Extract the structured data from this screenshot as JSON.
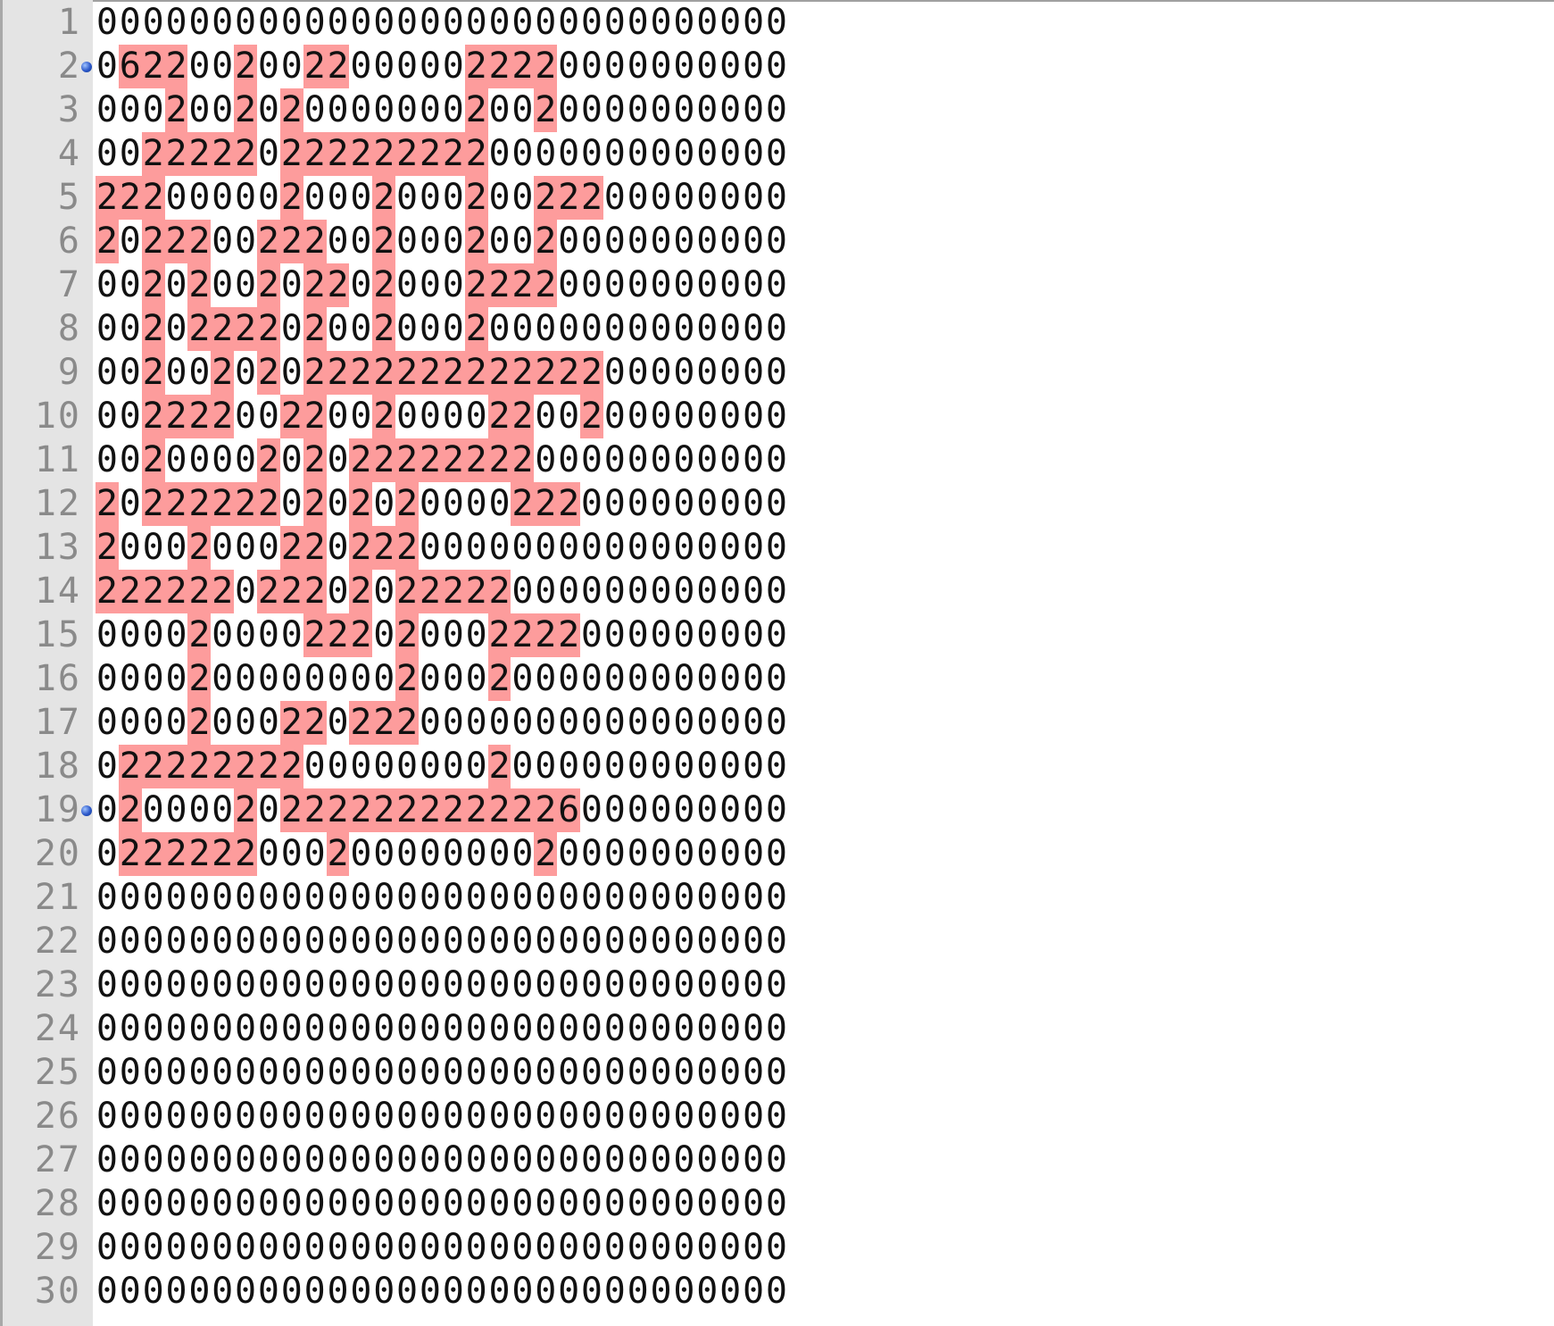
{
  "editor": {
    "lines": [
      "000000000000000000000000000000",
      "062200200220000022220000000000",
      "000200202000000020020000000000",
      "002222202222222220000000000000",
      "222000002000200020022200000000",
      "202220022200200020020000000000",
      "002020020220200022220000000000",
      "002022220200200020000000000000",
      "002002020222222222222200000000",
      "002222002200200002200200000000",
      "002000020202222222200000000000",
      "202222220202020000222000000000",
      "200020002202220000000000000000",
      "222222022202022222000000000000",
      "000020000222020002222000000000",
      "000020000000020002000000000000",
      "000020002202220000000000000000",
      "022222222000000002000000000000",
      "020000202222222222226000000000",
      "022222200020000000020000000000",
      "000000000000000000000000000000",
      "000000000000000000000000000000",
      "000000000000000000000000000000",
      "000000000000000000000000000000",
      "000000000000000000000000000000",
      "000000000000000000000000000000",
      "000000000000000000000000000000",
      "000000000000000000000000000000",
      "000000000000000000000000000000",
      "000000000000000000000000000000"
    ],
    "line_numbers": [
      "1",
      "2",
      "3",
      "4",
      "5",
      "6",
      "7",
      "8",
      "9",
      "10",
      "11",
      "12",
      "13",
      "14",
      "15",
      "16",
      "17",
      "18",
      "19",
      "20",
      "21",
      "22",
      "23",
      "24",
      "25",
      "26",
      "27",
      "28",
      "29",
      "30"
    ],
    "bookmarked_lines": [
      2,
      19
    ],
    "highlight_color": "#fd9c9c",
    "gutter_color": "#e4e4e4"
  }
}
